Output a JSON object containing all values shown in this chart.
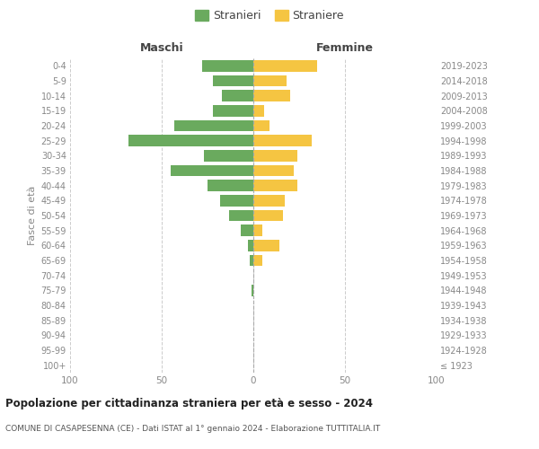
{
  "age_groups": [
    "100+",
    "95-99",
    "90-94",
    "85-89",
    "80-84",
    "75-79",
    "70-74",
    "65-69",
    "60-64",
    "55-59",
    "50-54",
    "45-49",
    "40-44",
    "35-39",
    "30-34",
    "25-29",
    "20-24",
    "15-19",
    "10-14",
    "5-9",
    "0-4"
  ],
  "birth_years": [
    "≤ 1923",
    "1924-1928",
    "1929-1933",
    "1934-1938",
    "1939-1943",
    "1944-1948",
    "1949-1953",
    "1954-1958",
    "1959-1963",
    "1964-1968",
    "1969-1973",
    "1974-1978",
    "1979-1983",
    "1984-1988",
    "1989-1993",
    "1994-1998",
    "1999-2003",
    "2004-2008",
    "2009-2013",
    "2014-2018",
    "2019-2023"
  ],
  "males": [
    0,
    0,
    0,
    0,
    0,
    1,
    0,
    2,
    3,
    7,
    13,
    18,
    25,
    45,
    27,
    68,
    43,
    22,
    17,
    22,
    28
  ],
  "females": [
    0,
    0,
    0,
    0,
    0,
    0,
    0,
    5,
    14,
    5,
    16,
    17,
    24,
    22,
    24,
    32,
    9,
    6,
    20,
    18,
    35
  ],
  "male_color": "#6aaa5e",
  "female_color": "#f5c542",
  "grid_color": "#cccccc",
  "label_color": "#888888",
  "background_color": "#ffffff",
  "title": "Popolazione per cittadinanza straniera per età e sesso - 2024",
  "subtitle": "COMUNE DI CASAPESENNA (CE) - Dati ISTAT al 1° gennaio 2024 - Elaborazione TUTTITALIA.IT",
  "xlabel_left": "Maschi",
  "xlabel_right": "Femmine",
  "ylabel_left": "Fasce di età",
  "legend_male": "Stranieri",
  "legend_female": "Straniere",
  "xlim": 100
}
